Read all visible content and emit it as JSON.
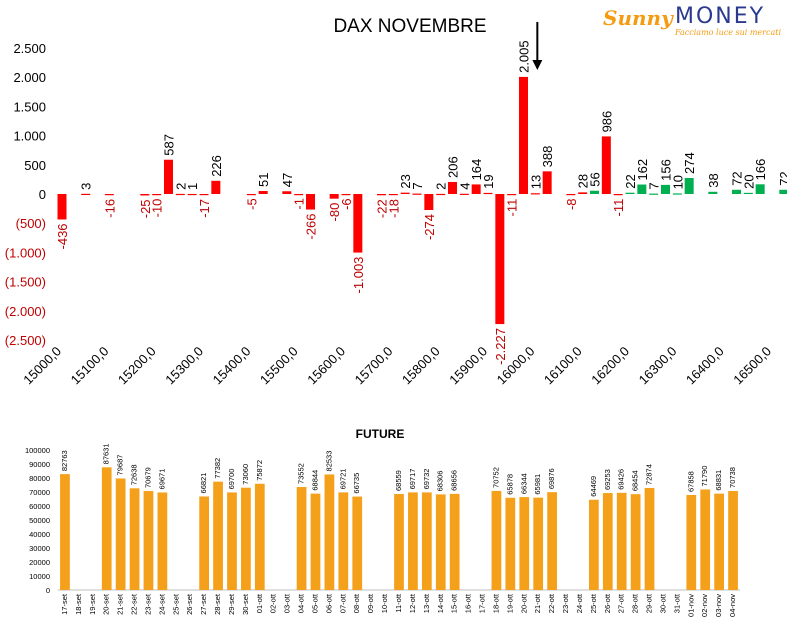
{
  "logo": {
    "brand_script": "Sunny",
    "brand_word": "MONEY",
    "tagline": "Facciamo luce sui mercati"
  },
  "chart_data": [
    {
      "type": "bar",
      "title": "DAX NOVEMBRE",
      "xlabel": "",
      "ylabel": "",
      "ylim": [
        -2500,
        2500
      ],
      "yticks": [
        "2.500",
        "2.000",
        "1.500",
        "1.000",
        "500",
        "0",
        "(500)",
        "(1.000)",
        "(1.500)",
        "(2.000)",
        "(2.500)"
      ],
      "ytick_values": [
        2500,
        2000,
        1500,
        1000,
        500,
        0,
        -500,
        -1000,
        -1500,
        -2000,
        -2500
      ],
      "xticks": [
        "15000,0",
        "15100,0",
        "15200,0",
        "15300,0",
        "15400,0",
        "15500,0",
        "15600,0",
        "15700,0",
        "15800,0",
        "15900,0",
        "16000,0",
        "16100,0",
        "16200,0",
        "16300,0",
        "16400,0",
        "16500,0"
      ],
      "xrange": [
        15000,
        16500
      ],
      "series": [
        {
          "color": "#ff0000",
          "points": [
            {
              "x": 15000,
              "y": -436,
              "label": "-436"
            },
            {
              "x": 15050,
              "y": 3,
              "label": "3"
            },
            {
              "x": 15100,
              "y": -16,
              "label": "-16"
            },
            {
              "x": 15175,
              "y": -25,
              "label": "-25"
            },
            {
              "x": 15200,
              "y": -10,
              "label": "-10"
            },
            {
              "x": 15225,
              "y": 587,
              "label": "587"
            },
            {
              "x": 15250,
              "y": 2,
              "label": "2"
            },
            {
              "x": 15275,
              "y": 1,
              "label": "1"
            },
            {
              "x": 15300,
              "y": -17,
              "label": "-17"
            },
            {
              "x": 15325,
              "y": 226,
              "label": "226"
            },
            {
              "x": 15400,
              "y": -5,
              "label": "-5"
            },
            {
              "x": 15425,
              "y": 51,
              "label": "51"
            },
            {
              "x": 15475,
              "y": 47,
              "label": "47"
            },
            {
              "x": 15500,
              "y": -1,
              "label": "-1"
            },
            {
              "x": 15525,
              "y": -266,
              "label": "-266"
            },
            {
              "x": 15575,
              "y": -80,
              "label": "-80"
            },
            {
              "x": 15600,
              "y": -6,
              "label": "-6"
            },
            {
              "x": 15625,
              "y": -1003,
              "label": "-1.003"
            },
            {
              "x": 15675,
              "y": -22,
              "label": "-22"
            },
            {
              "x": 15700,
              "y": -18,
              "label": "-18"
            },
            {
              "x": 15725,
              "y": 23,
              "label": "23"
            },
            {
              "x": 15750,
              "y": 7,
              "label": "7"
            },
            {
              "x": 15775,
              "y": -274,
              "label": "-274"
            },
            {
              "x": 15800,
              "y": 2,
              "label": "2"
            },
            {
              "x": 15825,
              "y": 206,
              "label": "206"
            },
            {
              "x": 15850,
              "y": 4,
              "label": "4"
            },
            {
              "x": 15875,
              "y": 164,
              "label": "164"
            },
            {
              "x": 15900,
              "y": 19,
              "label": "19"
            },
            {
              "x": 15925,
              "y": -2227,
              "label": "-2.227"
            },
            {
              "x": 15950,
              "y": -11,
              "label": "-11"
            },
            {
              "x": 15975,
              "y": 2005,
              "label": "2.005"
            },
            {
              "x": 16000,
              "y": 13,
              "label": "13"
            },
            {
              "x": 16025,
              "y": 388,
              "label": "388"
            },
            {
              "x": 16075,
              "y": -8,
              "label": "-8"
            },
            {
              "x": 16100,
              "y": 28,
              "label": "28"
            },
            {
              "x": 16150,
              "y": 986,
              "label": "986"
            },
            {
              "x": 16175,
              "y": -11,
              "label": "-11"
            }
          ]
        },
        {
          "color": "#00b050",
          "points": [
            {
              "x": 16125,
              "y": 56,
              "label": "56"
            },
            {
              "x": 16200,
              "y": 22,
              "label": "22"
            },
            {
              "x": 16225,
              "y": 162,
              "label": "162"
            },
            {
              "x": 16250,
              "y": 7,
              "label": "7"
            },
            {
              "x": 16275,
              "y": 156,
              "label": "156"
            },
            {
              "x": 16300,
              "y": 10,
              "label": "10"
            },
            {
              "x": 16325,
              "y": 274,
              "label": "274"
            },
            {
              "x": 16375,
              "y": 38,
              "label": "38"
            },
            {
              "x": 16425,
              "y": 72,
              "label": "72"
            },
            {
              "x": 16450,
              "y": 20,
              "label": "20"
            },
            {
              "x": 16475,
              "y": 166,
              "label": "166"
            },
            {
              "x": 16525,
              "y": 72,
              "label": "72"
            }
          ]
        }
      ],
      "annotation": {
        "type": "arrow-down",
        "x": 16000
      },
      "grid": false
    },
    {
      "type": "bar",
      "title": "FUTURE",
      "xlabel": "",
      "ylabel": "",
      "ylim": [
        0,
        100000
      ],
      "yticks": [
        "100000",
        "90000",
        "80000",
        "70000",
        "60000",
        "50000",
        "40000",
        "30000",
        "20000",
        "10000",
        "0"
      ],
      "ytick_values": [
        100000,
        90000,
        80000,
        70000,
        60000,
        50000,
        40000,
        30000,
        20000,
        10000,
        0
      ],
      "color": "#f5a01b",
      "categories": [
        "17-set",
        "18-set",
        "19-set",
        "20-set",
        "21-set",
        "22-set",
        "23-set",
        "24-set",
        "25-set",
        "26-set",
        "27-set",
        "28-set",
        "29-set",
        "30-set",
        "01-ott",
        "02-ott",
        "03-ott",
        "04-ott",
        "05-ott",
        "06-ott",
        "07-ott",
        "08-ott",
        "09-ott",
        "10-ott",
        "11-ott",
        "12-ott",
        "13-ott",
        "14-ott",
        "15-ott",
        "16-ott",
        "17-ott",
        "18-ott",
        "19-ott",
        "20-ott",
        "21-ott",
        "22-ott",
        "23-ott",
        "24-ott",
        "25-ott",
        "26-ott",
        "27-ott",
        "28-ott",
        "29-ott",
        "30-ott",
        "31-ott",
        "01-nov",
        "02-nov",
        "03-nov",
        "04-nov"
      ],
      "values": [
        82763,
        null,
        null,
        87631,
        79687,
        72638,
        70679,
        69671,
        null,
        null,
        66821,
        77382,
        69700,
        73060,
        75872,
        null,
        null,
        73552,
        68844,
        82533,
        69721,
        66735,
        null,
        null,
        68559,
        69717,
        69732,
        68306,
        68656,
        null,
        null,
        70752,
        65878,
        66344,
        65981,
        69876,
        null,
        null,
        64469,
        69253,
        69426,
        68454,
        72874,
        null,
        null,
        67858,
        71790,
        68831,
        70738
      ],
      "labels": [
        "82763",
        "",
        "",
        "87631",
        "79687",
        "72638",
        "70679",
        "69671",
        "",
        "",
        "66821",
        "77382",
        "69700",
        "73060",
        "75872",
        "",
        "",
        "73552",
        "68844",
        "82533",
        "69721",
        "66735",
        "",
        "",
        "68559",
        "69717",
        "69732",
        "68306",
        "68656",
        "",
        "",
        "70752",
        "65878",
        "66344",
        "65981",
        "69876",
        "",
        "",
        "64469",
        "69253",
        "69426",
        "68454",
        "72874",
        "",
        "",
        "67858",
        "71790",
        "68831",
        "70738"
      ],
      "grid": false
    }
  ]
}
